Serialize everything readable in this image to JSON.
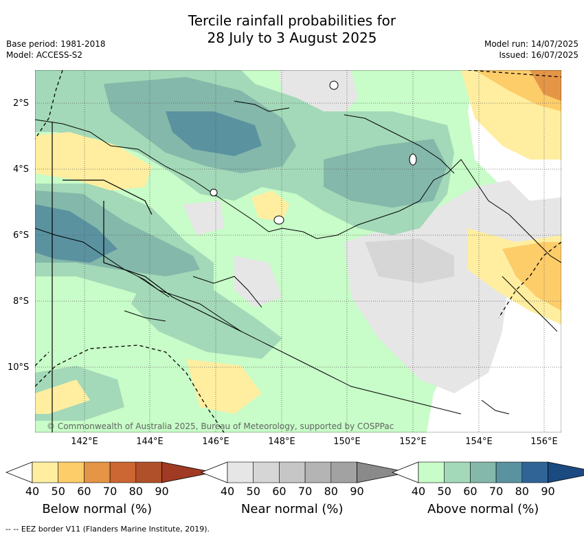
{
  "title_line1": "Tercile rainfall probabilities for",
  "title_line2": "28 July to 3 August 2025",
  "base_period": "Base period: 1981-2018",
  "model": "Model: ACCESS-S2",
  "model_run": "Model run: 14/07/2025",
  "issued": "Issued: 16/07/2025",
  "lat_labels": [
    "2°S",
    "4°S",
    "6°S",
    "8°S",
    "10°S"
  ],
  "lon_labels": [
    "142°E",
    "144°E",
    "146°E",
    "148°E",
    "150°E",
    "152°E",
    "154°E",
    "156°E"
  ],
  "copyright": "© Commonwealth of Australia 2025, Bureau of Meteorology, supported by COSPPac",
  "colorbars": [
    {
      "title": "Below normal (%)",
      "ticks": [
        "40",
        "50",
        "60",
        "70",
        "80",
        "90"
      ],
      "colors": [
        "#ffeea0",
        "#fdcd6a",
        "#e49545",
        "#cc6633",
        "#b0502a",
        "#a03a22"
      ]
    },
    {
      "title": "Near normal (%)",
      "ticks": [
        "40",
        "50",
        "60",
        "70",
        "80",
        "90"
      ],
      "colors": [
        "#e6e6e6",
        "#d6d6d6",
        "#c6c6c6",
        "#b4b4b4",
        "#a2a2a2",
        "#8a8a8a"
      ]
    },
    {
      "title": "Above normal (%)",
      "ticks": [
        "40",
        "50",
        "60",
        "70",
        "80",
        "90"
      ],
      "colors": [
        "#c8fcc8",
        "#a3d9b8",
        "#84b8aa",
        "#5a92a0",
        "#306496",
        "#1a4a80"
      ]
    }
  ],
  "footer": "-- -- EEZ border V11 (Flanders Marine Institute, 2019)."
}
